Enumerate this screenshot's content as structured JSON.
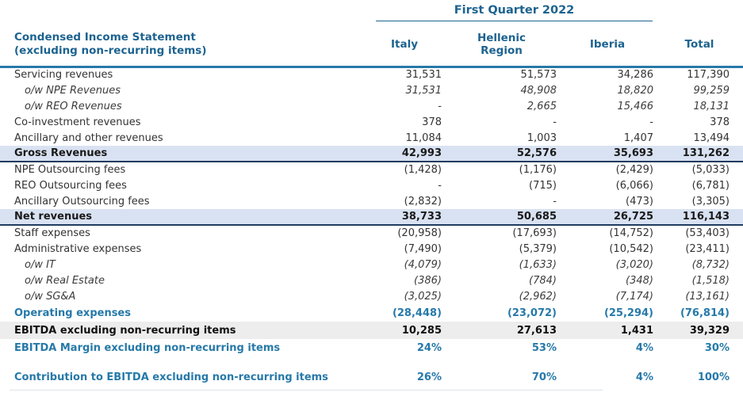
{
  "header": {
    "title_line1": "Condensed Income Statement",
    "title_line2": "(excluding non-recurring items)",
    "period": "First Quarter 2022",
    "columns": [
      "Italy",
      "Hellenic Region",
      "Iberia",
      "Total"
    ]
  },
  "rows": [
    {
      "label": "Servicing revenues",
      "style": "normal",
      "values": [
        "31,531",
        "51,573",
        "34,286",
        "117,390"
      ]
    },
    {
      "label": "o/w NPE Revenues",
      "style": "owf",
      "values": [
        "31,531",
        "48,908",
        "18,820",
        "99,259"
      ]
    },
    {
      "label": "o/w REO Revenues",
      "style": "owf",
      "values": [
        "-",
        "2,665",
        "15,466",
        "18,131"
      ]
    },
    {
      "label": "Co-investment revenues",
      "style": "normal",
      "values": [
        "378",
        "-",
        "-",
        "378"
      ]
    },
    {
      "label": "Ancillary and other revenues",
      "style": "normal",
      "values": [
        "11,084",
        "1,003",
        "1,407",
        "13,494"
      ]
    },
    {
      "label": "Gross Revenues",
      "style": "subtotal-blue",
      "values": [
        "42,993",
        "52,576",
        "35,693",
        "131,262"
      ]
    },
    {
      "label": "NPE Outsourcing fees",
      "style": "normal",
      "values": [
        "(1,428)",
        "(1,176)",
        "(2,429)",
        "(5,033)"
      ]
    },
    {
      "label": "REO Outsourcing fees",
      "style": "normal",
      "values": [
        "-",
        "(715)",
        "(6,066)",
        "(6,781)"
      ]
    },
    {
      "label": "Ancillary Outsourcing fees",
      "style": "normal",
      "values": [
        "(2,832)",
        "-",
        "(473)",
        "(3,305)"
      ]
    },
    {
      "label": "Net revenues",
      "style": "subtotal-blue",
      "values": [
        "38,733",
        "50,685",
        "26,725",
        "116,143"
      ]
    },
    {
      "label": "Staff expenses",
      "style": "normal",
      "values": [
        "(20,958)",
        "(17,693)",
        "(14,752)",
        "(53,403)"
      ]
    },
    {
      "label": "Administrative expenses",
      "style": "normal",
      "values": [
        "(7,490)",
        "(5,379)",
        "(10,542)",
        "(23,411)"
      ]
    },
    {
      "label": "o/w IT",
      "style": "owf",
      "values": [
        "(4,079)",
        "(1,633)",
        "(3,020)",
        "(8,732)"
      ]
    },
    {
      "label": "o/w Real Estate",
      "style": "owf",
      "values": [
        "(386)",
        "(784)",
        "(348)",
        "(1,518)"
      ]
    },
    {
      "label": "o/w SG&A",
      "style": "owf",
      "values": [
        "(3,025)",
        "(2,962)",
        "(7,174)",
        "(13,161)"
      ]
    },
    {
      "label": "Operating expenses",
      "style": "accent",
      "values": [
        "(28,448)",
        "(23,072)",
        "(25,294)",
        "(76,814)"
      ]
    },
    {
      "label": "EBITDA excluding non-recurring items",
      "style": "total-gray",
      "values": [
        "10,285",
        "27,613",
        "1,431",
        "39,329"
      ]
    },
    {
      "label": "EBITDA Margin excluding non-recurring items",
      "style": "accent",
      "values": [
        "24%",
        "53%",
        "4%",
        "30%"
      ]
    },
    {
      "label": "Contribution to EBITDA excluding non-recurring items",
      "style": "accent",
      "spacer_before": true,
      "values": [
        "26%",
        "70%",
        "4%",
        "100%"
      ]
    }
  ],
  "colors": {
    "header_blue": "#1d6390",
    "accent_blue": "#2679a9",
    "rule_blue": "#2679a9",
    "highlight_row_bg": "#d9e2f2",
    "total_row_bg": "#ededed",
    "dark_row_border": "#1f3b5e"
  }
}
